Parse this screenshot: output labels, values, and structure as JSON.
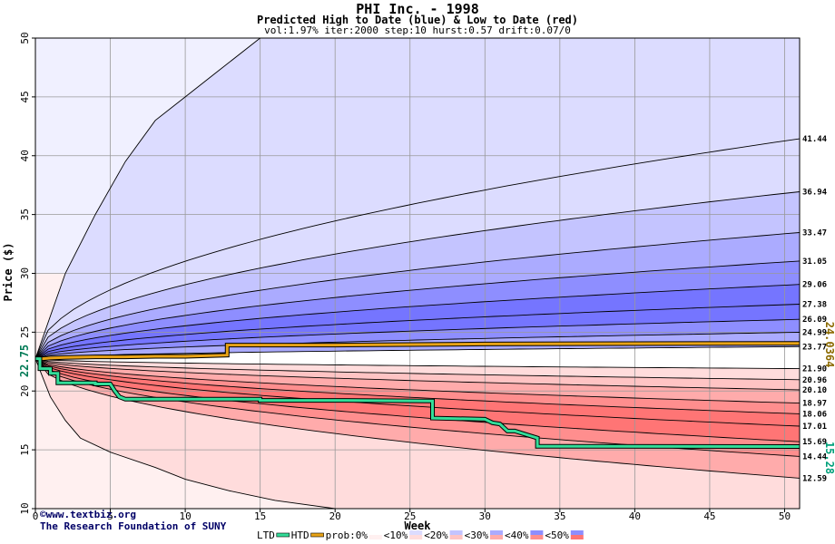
{
  "chart_data": {
    "type": "area",
    "title": "PHI Inc. - 1998",
    "subtitle": "Predicted High to Date (blue) &  Low to Date (red)",
    "params": "vol:1.97% iter:2000 step:10 hurst:0.57 drift:0.07/0",
    "xlabel": "Week",
    "ylabel": "Price ($)",
    "xlim": [
      0,
      51
    ],
    "ylim": [
      10,
      50
    ],
    "x_ticks": [
      0,
      5,
      10,
      15,
      20,
      25,
      30,
      35,
      40,
      45,
      50
    ],
    "y_ticks": [
      10,
      15,
      20,
      25,
      30,
      35,
      40,
      45,
      50
    ],
    "grid": true,
    "start_price": 22.75,
    "start_label": "22.75",
    "end_labels": [
      {
        "value": 24.0364,
        "text": "24.0364",
        "color": "#8b6a00"
      },
      {
        "value": 15.28,
        "text": "15.28",
        "color": "#00a07a"
      }
    ],
    "high_percentile_levels": [
      {
        "label": "41.44",
        "value": 41.44
      },
      {
        "label": "36.94",
        "value": 36.94
      },
      {
        "label": "33.47",
        "value": 33.47
      },
      {
        "label": "31.05",
        "value": 31.05
      },
      {
        "label": "29.06",
        "value": 29.06
      },
      {
        "label": "27.38",
        "value": 27.38
      },
      {
        "label": "26.09",
        "value": 26.09
      },
      {
        "label": "24.99",
        "value": 24.99
      },
      {
        "label": "23.77",
        "value": 23.77
      }
    ],
    "low_percentile_levels": [
      {
        "label": "21.90",
        "value": 21.9
      },
      {
        "label": "20.96",
        "value": 20.96
      },
      {
        "label": "20.10",
        "value": 20.1
      },
      {
        "label": "18.97",
        "value": 18.97
      },
      {
        "label": "18.06",
        "value": 18.06
      },
      {
        "label": "17.01",
        "value": 17.01
      },
      {
        "label": "15.69",
        "value": 15.69
      },
      {
        "label": "14.44",
        "value": 14.44
      },
      {
        "label": "12.59",
        "value": 12.59
      }
    ],
    "outer_high_envelope": {
      "x": [
        0,
        2,
        4,
        6,
        8,
        10,
        12,
        15
      ],
      "y": [
        22.75,
        30,
        35,
        39.5,
        43,
        45,
        47,
        50
      ]
    },
    "outer_low_envelope": {
      "x": [
        0,
        1,
        2,
        3,
        5,
        8,
        10,
        13,
        16,
        20
      ],
      "y": [
        22.75,
        19.5,
        17.5,
        16,
        14.8,
        13.5,
        12.5,
        11.5,
        10.7,
        10
      ]
    },
    "high_to_date_series": {
      "name": "HTD",
      "color": "#e8a317",
      "x": [
        0,
        0.5,
        1,
        2,
        4,
        6,
        8,
        10,
        12.8,
        12.8,
        20,
        30,
        40,
        51
      ],
      "y": [
        22.75,
        22.75,
        22.8,
        22.85,
        22.9,
        22.9,
        22.95,
        22.95,
        23.05,
        23.9,
        23.9,
        24.0,
        24.03,
        24.04
      ]
    },
    "low_to_date_series": {
      "name": "LTD",
      "color": "#33dd99",
      "x": [
        0,
        0.3,
        0.3,
        1,
        1,
        1.5,
        1.5,
        4,
        4,
        5,
        5.3,
        5.6,
        6,
        15,
        15,
        20,
        26.5,
        26.5,
        30,
        30.5,
        31,
        31.5,
        32,
        32.5,
        33.5,
        33.5,
        51
      ],
      "y": [
        22.75,
        22.75,
        21.9,
        21.9,
        21.5,
        21.5,
        20.7,
        20.7,
        20.6,
        20.6,
        20.0,
        19.5,
        19.3,
        19.3,
        19.2,
        19.2,
        19.15,
        17.7,
        17.6,
        17.3,
        17.2,
        16.6,
        16.6,
        16.4,
        16.0,
        15.3,
        15.28
      ]
    },
    "legend": [
      "LTD",
      "HTD",
      "prob:0%",
      "<10%",
      "<20%",
      "<30%",
      "<40%",
      "<50%"
    ],
    "legend_position": "bottom",
    "colors": {
      "blue_bands": [
        "#f0f0ff",
        "#dcdcff",
        "#c4c4ff",
        "#ababff",
        "#8e8eff",
        "#7575ff"
      ],
      "red_bands": [
        "#fff0f0",
        "#ffdcdc",
        "#ffc4c4",
        "#ffabab",
        "#ff8e8e",
        "#ff7575"
      ],
      "grid": "#999999"
    }
  },
  "credits": {
    "site": "www.textbiz.org",
    "org": "The Research Foundation of SUNY",
    "copyright_symbol": "©"
  }
}
